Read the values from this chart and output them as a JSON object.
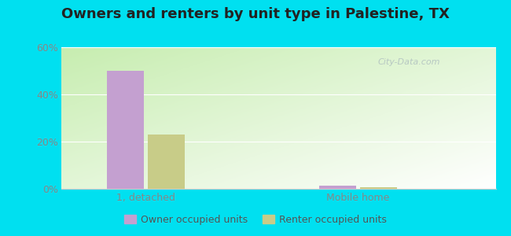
{
  "title": "Owners and renters by unit type in Palestine, TX",
  "categories": [
    "1, detached",
    "Mobile home"
  ],
  "owner_values": [
    50,
    1.2
  ],
  "renter_values": [
    23,
    0.8
  ],
  "owner_color": "#c4a0d0",
  "renter_color": "#c8cc88",
  "ylim": [
    0,
    60
  ],
  "yticks": [
    0,
    20,
    40,
    60
  ],
  "ytick_labels": [
    "0%",
    "20%",
    "40%",
    "60%"
  ],
  "background_outer": "#00e0f0",
  "legend_owner": "Owner occupied units",
  "legend_renter": "Renter occupied units",
  "title_fontsize": 13,
  "bar_width": 0.35,
  "group_positions": [
    0.5,
    2.5
  ],
  "xlim": [
    -0.3,
    3.8
  ],
  "gradient_left": "#c8e8b0",
  "gradient_right": "#e8f8e8",
  "grid_color": "#dddddd",
  "tick_color": "#888888",
  "watermark": "City-Data.com"
}
